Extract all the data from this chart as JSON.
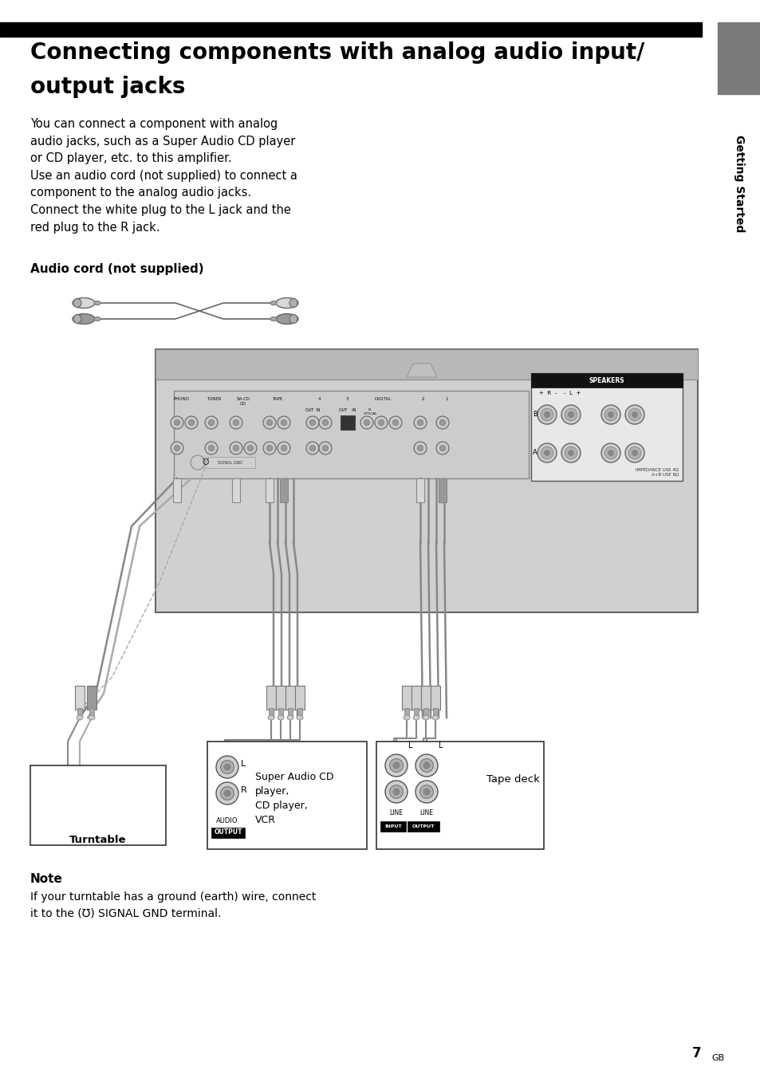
{
  "page_bg": "#ffffff",
  "title_bar_color": "#000000",
  "title_text_line1": "Connecting components with analog audio input/",
  "title_text_line2": "output jacks",
  "title_fontsize": 20,
  "sidebar_color": "#808080",
  "sidebar_text": "Getting Started",
  "body_text": "You can connect a component with analog\naudio jacks, such as a Super Audio CD player\nor CD player, etc. to this amplifier.\nUse an audio cord (not supplied) to connect a\ncomponent to the analog audio jacks.\nConnect the white plug to the L jack and the\nred plug to the R jack.",
  "body_fontsize": 10.5,
  "subtitle_text": "Audio cord (not supplied)",
  "subtitle_fontsize": 11,
  "note_title": "Note",
  "note_text": "If your turntable has a ground (earth) wire, connect\nit to the (℧) SIGNAL GND terminal.",
  "note_fontsize": 10,
  "page_number": "7",
  "turntable_label": "Turntable",
  "sacd_label": "Super Audio CD\nplayer,\nCD player,\nVCR",
  "tapedeck_label": "Tape deck"
}
